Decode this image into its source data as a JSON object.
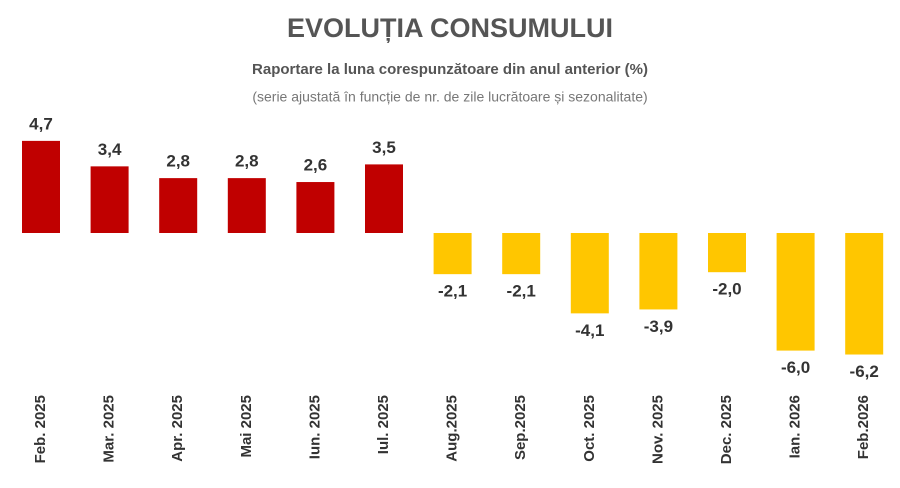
{
  "chart_data": {
    "type": "bar",
    "title": "EVOLUȚIA CONSUMULUI",
    "subtitle": "Raportare la luna corespunzătoare din anul anterior (%)",
    "note": "(serie ajustată în funcție de nr. de zile lucrătoare și sezonalitate)",
    "categories": [
      "Feb. 2025",
      "Mar. 2025",
      "Apr. 2025",
      "Mai 2025",
      "Iun. 2025",
      "Iul. 2025",
      "Aug.2025",
      "Sep.2025",
      "Oct. 2025",
      "Nov. 2025",
      "Dec. 2025",
      "Ian. 2026",
      "Feb.2026"
    ],
    "values": [
      4.7,
      3.4,
      2.8,
      2.8,
      2.6,
      3.5,
      -2.1,
      -2.1,
      -4.1,
      -3.9,
      -2.0,
      -6.0,
      -6.2
    ],
    "value_labels": [
      "4,7",
      "3,4",
      "2,8",
      "2,8",
      "2,6",
      "3,5",
      "-2,1",
      "-2,1",
      "-4,1",
      "-3,9",
      "-2,0",
      "-6,0",
      "-6,2"
    ],
    "positive_color": "#c00000",
    "negative_color": "#ffc600"
  }
}
